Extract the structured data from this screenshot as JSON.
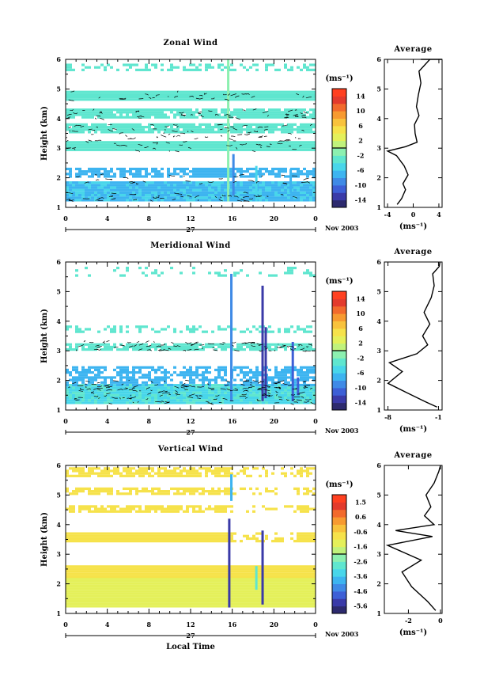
{
  "figure": {
    "x_axis_label": "Local Time",
    "date_suffix": "Nov 2003",
    "day_label": "27",
    "y_axis_label": "Height (km)",
    "avg_title": "Average",
    "units_label": "(ms⁻¹)"
  },
  "chart_data": [
    {
      "type": "heatmap",
      "title": "Zonal Wind",
      "xlabel": "",
      "ylabel": "Height (km)",
      "xlim": [
        0,
        24
      ],
      "ylim": [
        1,
        6
      ],
      "xticks": [
        "0",
        "4",
        "8",
        "12",
        "16",
        "20",
        "0"
      ],
      "yticks": [
        "1",
        "2",
        "3",
        "4",
        "5",
        "6"
      ],
      "colorbar": {
        "label": "(ms⁻¹)",
        "ticks": [
          "14",
          "10",
          "6",
          "2",
          "-2",
          "-6",
          "-10",
          "-14"
        ],
        "range": [
          -16,
          16
        ]
      },
      "dominant_values": "mostly -2 to -6 ms⁻¹, cyan to light blue",
      "avg_profile": {
        "title": "Average",
        "xlabel": "(ms⁻¹)",
        "xticks": [
          "-4",
          "0",
          "4"
        ],
        "xlim": [
          -4.5,
          4.5
        ],
        "yticks": [
          "1",
          "2",
          "3",
          "4",
          "5",
          "6"
        ],
        "points": [
          [
            -2.5,
            1.1
          ],
          [
            -1.8,
            1.3
          ],
          [
            -1.2,
            1.6
          ],
          [
            -1.6,
            1.8
          ],
          [
            -0.8,
            2.1
          ],
          [
            -1.4,
            2.4
          ],
          [
            -2.6,
            2.75
          ],
          [
            -4.0,
            2.9
          ],
          [
            -1.2,
            3.05
          ],
          [
            0.6,
            3.2
          ],
          [
            0.3,
            3.5
          ],
          [
            0.2,
            3.8
          ],
          [
            0.9,
            4.1
          ],
          [
            0.5,
            4.4
          ],
          [
            0.8,
            4.8
          ],
          [
            1.2,
            5.2
          ],
          [
            0.9,
            5.6
          ],
          [
            2.6,
            6.0
          ],
          [
            1.2,
            6.2
          ],
          [
            2.4,
            6.5
          ],
          [
            4.0,
            6.8
          ],
          [
            4.5,
            6.9
          ]
        ]
      }
    },
    {
      "type": "heatmap",
      "title": "Meridional Wind",
      "xlabel": "",
      "ylabel": "Height (km)",
      "xlim": [
        0,
        24
      ],
      "ylim": [
        1,
        6
      ],
      "xticks": [
        "0",
        "4",
        "8",
        "12",
        "16",
        "20",
        "0"
      ],
      "yticks": [
        "1",
        "2",
        "3",
        "4",
        "5",
        "6"
      ],
      "colorbar": {
        "label": "(ms⁻¹)",
        "ticks": [
          "14",
          "10",
          "6",
          "2",
          "-2",
          "-6",
          "-10",
          "-14"
        ],
        "range": [
          -16,
          16
        ]
      },
      "dominant_values": "mostly -2 to -6 ms⁻¹ with streaks near -12 ms⁻¹ around 18-22 h",
      "avg_profile": {
        "title": "Average",
        "xlabel": "(ms⁻¹)",
        "xticks": [
          "-8",
          "-1"
        ],
        "xlim": [
          -8.5,
          -0.5
        ],
        "yticks": [
          "1",
          "2",
          "3",
          "4",
          "5",
          "6"
        ],
        "points": [
          [
            -1.2,
            1.1
          ],
          [
            -3.0,
            1.3
          ],
          [
            -5.5,
            1.6
          ],
          [
            -8.0,
            1.9
          ],
          [
            -6.0,
            2.3
          ],
          [
            -7.8,
            2.6
          ],
          [
            -4.0,
            2.9
          ],
          [
            -2.5,
            3.2
          ],
          [
            -3.2,
            3.5
          ],
          [
            -2.2,
            3.9
          ],
          [
            -3.0,
            4.3
          ],
          [
            -2.0,
            4.8
          ],
          [
            -1.6,
            5.2
          ],
          [
            -1.8,
            5.6
          ],
          [
            -0.9,
            5.85
          ],
          [
            -0.8,
            6.0
          ]
        ]
      }
    },
    {
      "type": "heatmap",
      "title": "Vertical Wind",
      "xlabel": "Local Time",
      "ylabel": "Height (km)",
      "xlim": [
        0,
        24
      ],
      "ylim": [
        1,
        6
      ],
      "xticks": [
        "0",
        "4",
        "8",
        "12",
        "16",
        "20",
        "0"
      ],
      "yticks": [
        "1",
        "2",
        "3",
        "4",
        "5",
        "6"
      ],
      "colorbar": {
        "label": "(ms⁻¹)",
        "ticks": [
          "1.5",
          "0.6",
          "-0.6",
          "-1.6",
          "-2.6",
          "-3.6",
          "-4.6",
          "-5.6"
        ],
        "range": [
          -6.1,
          2.0
        ]
      },
      "dominant_values": "mostly -0.3 to 0.3 ms⁻¹, yellow, with narrow columns near -5 ms⁻¹",
      "avg_profile": {
        "title": "Average",
        "xlabel": "(ms⁻¹)",
        "xticks": [
          "-2",
          "0"
        ],
        "xlim": [
          -3.5,
          0.1
        ],
        "yticks": [
          "1",
          "2",
          "3",
          "4",
          "5",
          "6"
        ],
        "points": [
          [
            -0.3,
            1.1
          ],
          [
            -0.8,
            1.4
          ],
          [
            -1.8,
            1.9
          ],
          [
            -2.4,
            2.4
          ],
          [
            -1.2,
            2.8
          ],
          [
            -3.3,
            3.3
          ],
          [
            -0.5,
            3.6
          ],
          [
            -2.8,
            3.8
          ],
          [
            -0.4,
            4.0
          ],
          [
            -1.0,
            4.3
          ],
          [
            -0.6,
            4.6
          ],
          [
            -0.9,
            5.0
          ],
          [
            -0.4,
            5.4
          ],
          [
            -0.1,
            5.8
          ],
          [
            0.0,
            6.0
          ]
        ]
      }
    }
  ]
}
